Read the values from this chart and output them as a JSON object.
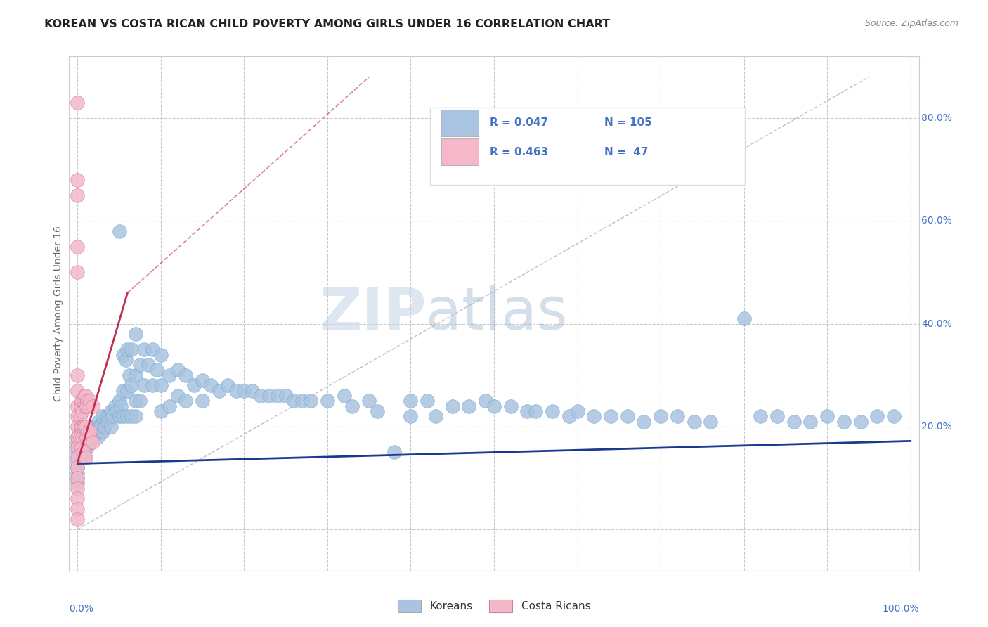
{
  "title": "KOREAN VS COSTA RICAN CHILD POVERTY AMONG GIRLS UNDER 16 CORRELATION CHART",
  "source": "Source: ZipAtlas.com",
  "ylabel": "Child Poverty Among Girls Under 16",
  "ytick_vals": [
    0.0,
    0.2,
    0.4,
    0.6,
    0.8
  ],
  "ytick_labels": [
    "",
    "20.0%",
    "40.0%",
    "60.0%",
    "80.0%"
  ],
  "xlim": [
    -0.01,
    1.01
  ],
  "ylim": [
    -0.08,
    0.92
  ],
  "legend_label1": "Koreans",
  "legend_label2": "Costa Ricans",
  "blue_color": "#a8c4e0",
  "pink_color": "#f4b8c8",
  "blue_line_color": "#1a3a8f",
  "pink_line_color": "#c03050",
  "axis_text_color": "#4472c4",
  "title_color": "#222222",
  "watermark_zip": "ZIP",
  "watermark_atlas": "atlas",
  "blue_scatter": [
    [
      0.0,
      0.18
    ],
    [
      0.0,
      0.17
    ],
    [
      0.0,
      0.16
    ],
    [
      0.0,
      0.15
    ],
    [
      0.0,
      0.14
    ],
    [
      0.0,
      0.13
    ],
    [
      0.0,
      0.12
    ],
    [
      0.0,
      0.11
    ],
    [
      0.0,
      0.1
    ],
    [
      0.0,
      0.09
    ],
    [
      0.002,
      0.19
    ],
    [
      0.003,
      0.18
    ],
    [
      0.004,
      0.17
    ],
    [
      0.005,
      0.16
    ],
    [
      0.005,
      0.15
    ],
    [
      0.006,
      0.14
    ],
    [
      0.007,
      0.18
    ],
    [
      0.008,
      0.17
    ],
    [
      0.008,
      0.15
    ],
    [
      0.009,
      0.14
    ],
    [
      0.01,
      0.2
    ],
    [
      0.01,
      0.18
    ],
    [
      0.01,
      0.16
    ],
    [
      0.011,
      0.17
    ],
    [
      0.012,
      0.19
    ],
    [
      0.012,
      0.16
    ],
    [
      0.013,
      0.18
    ],
    [
      0.014,
      0.17
    ],
    [
      0.015,
      0.19
    ],
    [
      0.015,
      0.17
    ],
    [
      0.016,
      0.2
    ],
    [
      0.017,
      0.18
    ],
    [
      0.018,
      0.19
    ],
    [
      0.019,
      0.18
    ],
    [
      0.02,
      0.2
    ],
    [
      0.02,
      0.18
    ],
    [
      0.021,
      0.19
    ],
    [
      0.022,
      0.2
    ],
    [
      0.023,
      0.19
    ],
    [
      0.024,
      0.18
    ],
    [
      0.025,
      0.21
    ],
    [
      0.026,
      0.2
    ],
    [
      0.027,
      0.19
    ],
    [
      0.028,
      0.2
    ],
    [
      0.03,
      0.22
    ],
    [
      0.03,
      0.19
    ],
    [
      0.032,
      0.21
    ],
    [
      0.033,
      0.2
    ],
    [
      0.035,
      0.22
    ],
    [
      0.036,
      0.21
    ],
    [
      0.038,
      0.22
    ],
    [
      0.04,
      0.23
    ],
    [
      0.04,
      0.2
    ],
    [
      0.042,
      0.22
    ],
    [
      0.045,
      0.24
    ],
    [
      0.047,
      0.23
    ],
    [
      0.05,
      0.58
    ],
    [
      0.05,
      0.25
    ],
    [
      0.05,
      0.22
    ],
    [
      0.052,
      0.24
    ],
    [
      0.055,
      0.34
    ],
    [
      0.055,
      0.27
    ],
    [
      0.055,
      0.22
    ],
    [
      0.058,
      0.33
    ],
    [
      0.06,
      0.35
    ],
    [
      0.06,
      0.27
    ],
    [
      0.06,
      0.22
    ],
    [
      0.062,
      0.3
    ],
    [
      0.065,
      0.35
    ],
    [
      0.065,
      0.28
    ],
    [
      0.065,
      0.22
    ],
    [
      0.07,
      0.38
    ],
    [
      0.07,
      0.3
    ],
    [
      0.07,
      0.25
    ],
    [
      0.07,
      0.22
    ],
    [
      0.075,
      0.32
    ],
    [
      0.075,
      0.25
    ],
    [
      0.08,
      0.35
    ],
    [
      0.08,
      0.28
    ],
    [
      0.085,
      0.32
    ],
    [
      0.09,
      0.35
    ],
    [
      0.09,
      0.28
    ],
    [
      0.095,
      0.31
    ],
    [
      0.1,
      0.34
    ],
    [
      0.1,
      0.28
    ],
    [
      0.1,
      0.23
    ],
    [
      0.11,
      0.3
    ],
    [
      0.11,
      0.24
    ],
    [
      0.12,
      0.31
    ],
    [
      0.12,
      0.26
    ],
    [
      0.13,
      0.3
    ],
    [
      0.13,
      0.25
    ],
    [
      0.14,
      0.28
    ],
    [
      0.15,
      0.29
    ],
    [
      0.15,
      0.25
    ],
    [
      0.16,
      0.28
    ],
    [
      0.17,
      0.27
    ],
    [
      0.18,
      0.28
    ],
    [
      0.19,
      0.27
    ],
    [
      0.2,
      0.27
    ],
    [
      0.21,
      0.27
    ],
    [
      0.22,
      0.26
    ],
    [
      0.23,
      0.26
    ],
    [
      0.24,
      0.26
    ],
    [
      0.25,
      0.26
    ],
    [
      0.26,
      0.25
    ],
    [
      0.27,
      0.25
    ],
    [
      0.28,
      0.25
    ],
    [
      0.3,
      0.25
    ],
    [
      0.32,
      0.26
    ],
    [
      0.33,
      0.24
    ],
    [
      0.35,
      0.25
    ],
    [
      0.36,
      0.23
    ],
    [
      0.38,
      0.15
    ],
    [
      0.4,
      0.25
    ],
    [
      0.4,
      0.22
    ],
    [
      0.42,
      0.25
    ],
    [
      0.43,
      0.22
    ],
    [
      0.45,
      0.24
    ],
    [
      0.47,
      0.24
    ],
    [
      0.49,
      0.25
    ],
    [
      0.5,
      0.24
    ],
    [
      0.52,
      0.24
    ],
    [
      0.54,
      0.23
    ],
    [
      0.55,
      0.23
    ],
    [
      0.57,
      0.23
    ],
    [
      0.59,
      0.22
    ],
    [
      0.6,
      0.23
    ],
    [
      0.62,
      0.22
    ],
    [
      0.64,
      0.22
    ],
    [
      0.66,
      0.22
    ],
    [
      0.68,
      0.21
    ],
    [
      0.7,
      0.22
    ],
    [
      0.72,
      0.22
    ],
    [
      0.74,
      0.21
    ],
    [
      0.76,
      0.21
    ],
    [
      0.8,
      0.41
    ],
    [
      0.82,
      0.22
    ],
    [
      0.84,
      0.22
    ],
    [
      0.86,
      0.21
    ],
    [
      0.88,
      0.21
    ],
    [
      0.9,
      0.22
    ],
    [
      0.92,
      0.21
    ],
    [
      0.94,
      0.21
    ],
    [
      0.96,
      0.22
    ],
    [
      0.98,
      0.22
    ]
  ],
  "pink_scatter": [
    [
      0.0,
      0.83
    ],
    [
      0.0,
      0.68
    ],
    [
      0.0,
      0.65
    ],
    [
      0.0,
      0.55
    ],
    [
      0.0,
      0.5
    ],
    [
      0.0,
      0.3
    ],
    [
      0.0,
      0.27
    ],
    [
      0.0,
      0.24
    ],
    [
      0.0,
      0.22
    ],
    [
      0.0,
      0.2
    ],
    [
      0.0,
      0.18
    ],
    [
      0.0,
      0.16
    ],
    [
      0.0,
      0.14
    ],
    [
      0.0,
      0.12
    ],
    [
      0.0,
      0.1
    ],
    [
      0.0,
      0.08
    ],
    [
      0.0,
      0.06
    ],
    [
      0.0,
      0.04
    ],
    [
      0.0,
      0.02
    ],
    [
      0.003,
      0.22
    ],
    [
      0.003,
      0.18
    ],
    [
      0.004,
      0.24
    ],
    [
      0.004,
      0.2
    ],
    [
      0.005,
      0.25
    ],
    [
      0.005,
      0.2
    ],
    [
      0.005,
      0.16
    ],
    [
      0.006,
      0.23
    ],
    [
      0.006,
      0.18
    ],
    [
      0.007,
      0.25
    ],
    [
      0.007,
      0.2
    ],
    [
      0.007,
      0.15
    ],
    [
      0.008,
      0.26
    ],
    [
      0.008,
      0.2
    ],
    [
      0.009,
      0.24
    ],
    [
      0.009,
      0.18
    ],
    [
      0.01,
      0.26
    ],
    [
      0.01,
      0.2
    ],
    [
      0.01,
      0.14
    ],
    [
      0.011,
      0.24
    ],
    [
      0.011,
      0.18
    ],
    [
      0.012,
      0.25
    ],
    [
      0.012,
      0.19
    ],
    [
      0.013,
      0.24
    ],
    [
      0.013,
      0.18
    ],
    [
      0.015,
      0.25
    ],
    [
      0.015,
      0.19
    ],
    [
      0.018,
      0.24
    ],
    [
      0.018,
      0.17
    ]
  ],
  "blue_trendline": [
    [
      0.0,
      0.128
    ],
    [
      1.0,
      0.172
    ]
  ],
  "pink_trendline_solid": [
    [
      0.0,
      0.13
    ],
    [
      0.06,
      0.46
    ]
  ],
  "pink_trendline_dashed": [
    [
      0.06,
      0.46
    ],
    [
      0.35,
      0.88
    ]
  ],
  "gray_dashed_line": [
    [
      0.0,
      0.0
    ],
    [
      0.95,
      0.88
    ]
  ]
}
